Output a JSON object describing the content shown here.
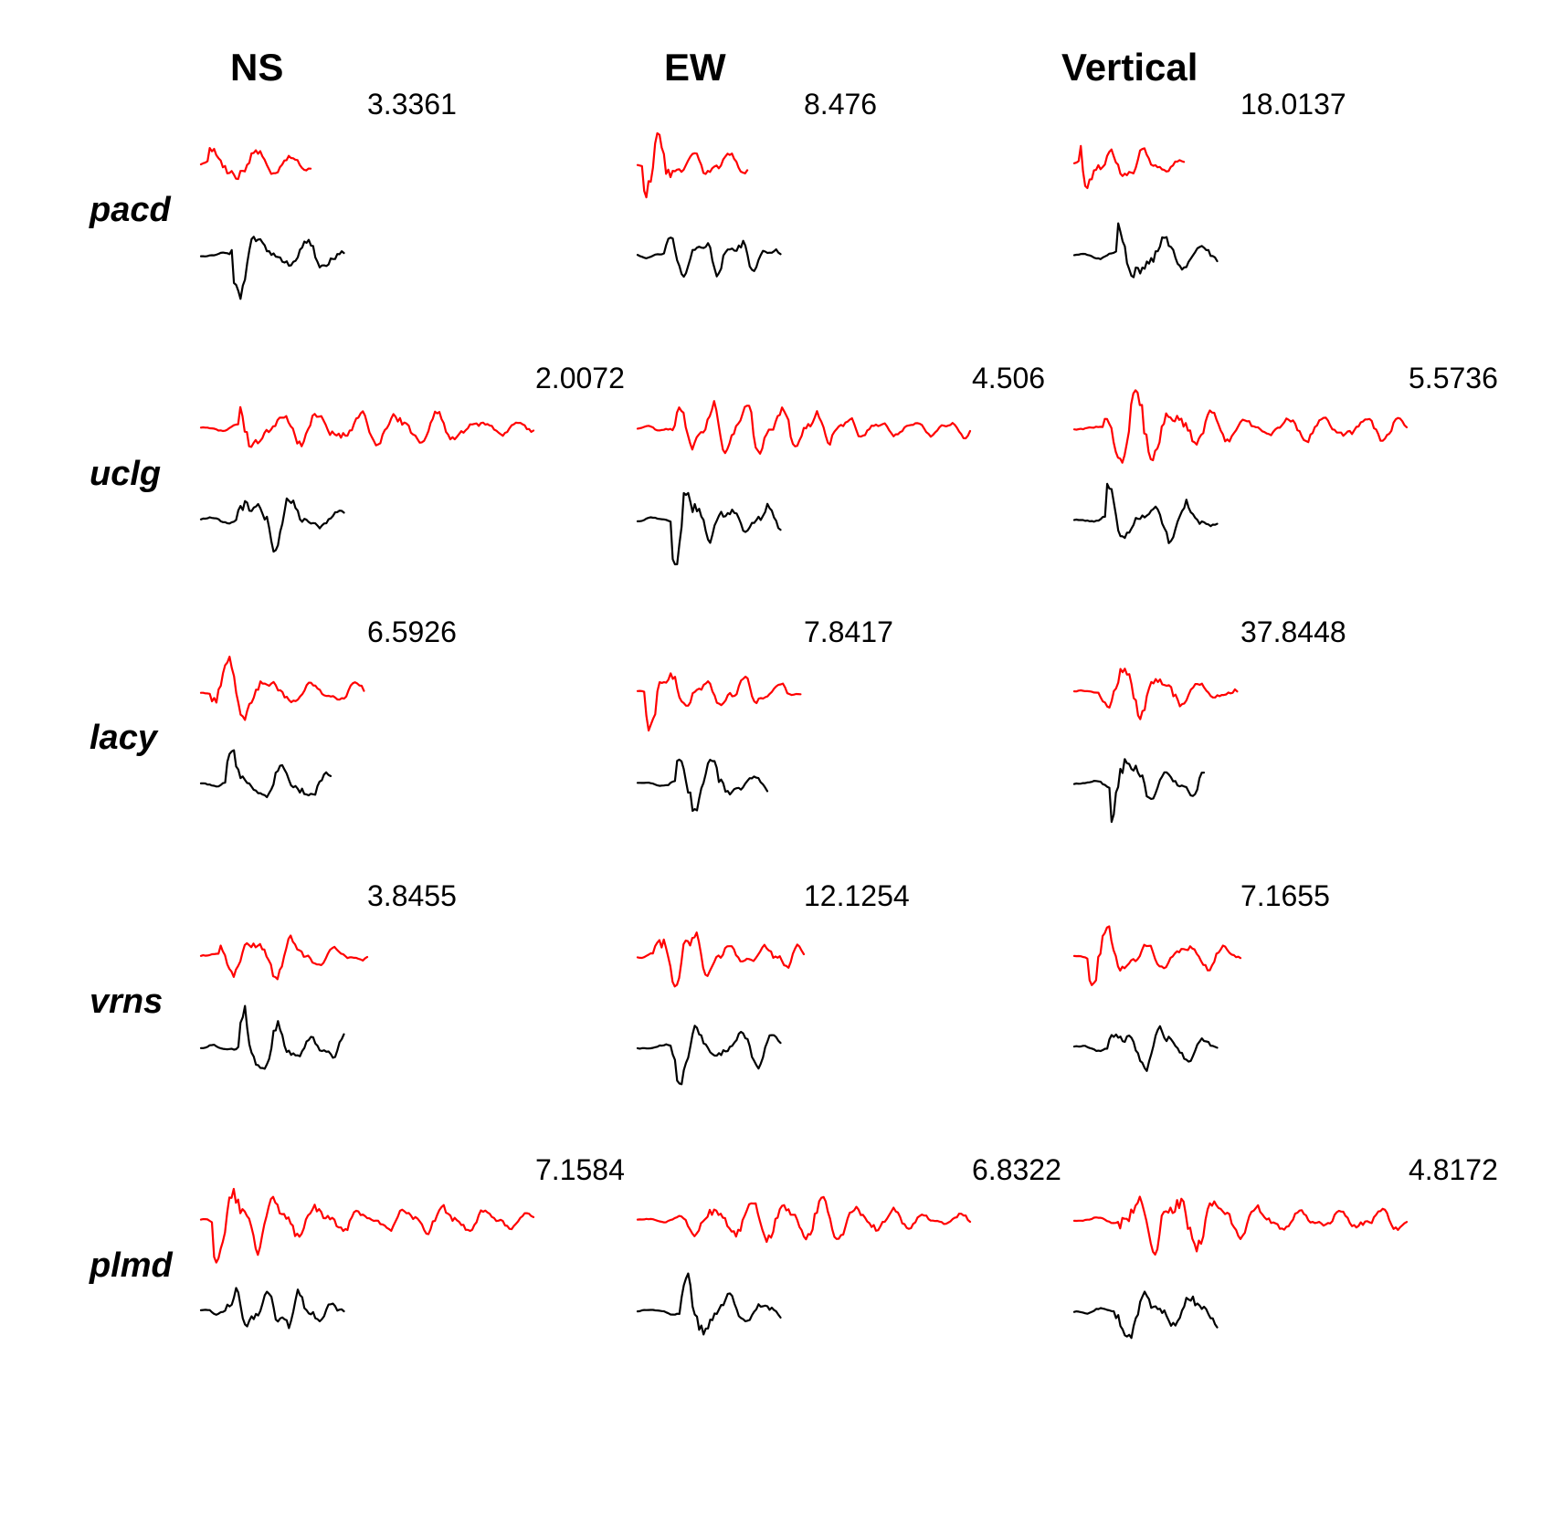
{
  "chart_data": {
    "type": "line",
    "columns": [
      "NS",
      "EW",
      "Vertical"
    ],
    "stations": [
      "pacd",
      "uclg",
      "lacy",
      "vrns",
      "plmd"
    ],
    "colors": {
      "observed": "#000000",
      "synthetic": "#ff0000"
    },
    "traces": [
      [
        {
          "scale": "3.3361",
          "red_length": 0.33,
          "black_length": 0.43,
          "red_seed": 11,
          "black_seed": 12
        },
        {
          "scale": "8.476",
          "red_length": 0.33,
          "black_length": 0.43,
          "red_seed": 13,
          "black_seed": 14
        },
        {
          "scale": "18.0137",
          "red_length": 0.33,
          "black_length": 0.43,
          "red_seed": 15,
          "black_seed": 16
        }
      ],
      [
        {
          "scale": "2.0072",
          "red_length": 1.0,
          "black_length": 0.43,
          "red_seed": 21,
          "black_seed": 22
        },
        {
          "scale": "4.506",
          "red_length": 1.0,
          "black_length": 0.43,
          "red_seed": 23,
          "black_seed": 24
        },
        {
          "scale": "5.5736",
          "red_length": 1.0,
          "black_length": 0.43,
          "red_seed": 25,
          "black_seed": 26
        }
      ],
      [
        {
          "scale": "6.5926",
          "red_length": 0.49,
          "black_length": 0.39,
          "red_seed": 31,
          "black_seed": 32
        },
        {
          "scale": "7.8417",
          "red_length": 0.49,
          "black_length": 0.39,
          "red_seed": 33,
          "black_seed": 34
        },
        {
          "scale": "37.8448",
          "red_length": 0.49,
          "black_length": 0.39,
          "red_seed": 35,
          "black_seed": 36
        }
      ],
      [
        {
          "scale": "3.8455",
          "red_length": 0.5,
          "black_length": 0.43,
          "red_seed": 41,
          "black_seed": 42
        },
        {
          "scale": "12.1254",
          "red_length": 0.5,
          "black_length": 0.43,
          "red_seed": 43,
          "black_seed": 44
        },
        {
          "scale": "7.1655",
          "red_length": 0.5,
          "black_length": 0.43,
          "red_seed": 45,
          "black_seed": 46
        }
      ],
      [
        {
          "scale": "7.1584",
          "red_length": 1.0,
          "black_length": 0.43,
          "red_seed": 51,
          "black_seed": 52
        },
        {
          "scale": "6.8322",
          "red_length": 1.0,
          "black_length": 0.43,
          "red_seed": 53,
          "black_seed": 54
        },
        {
          "scale": "4.8172",
          "red_length": 1.0,
          "black_length": 0.43,
          "red_seed": 55,
          "black_seed": 56
        }
      ]
    ]
  }
}
